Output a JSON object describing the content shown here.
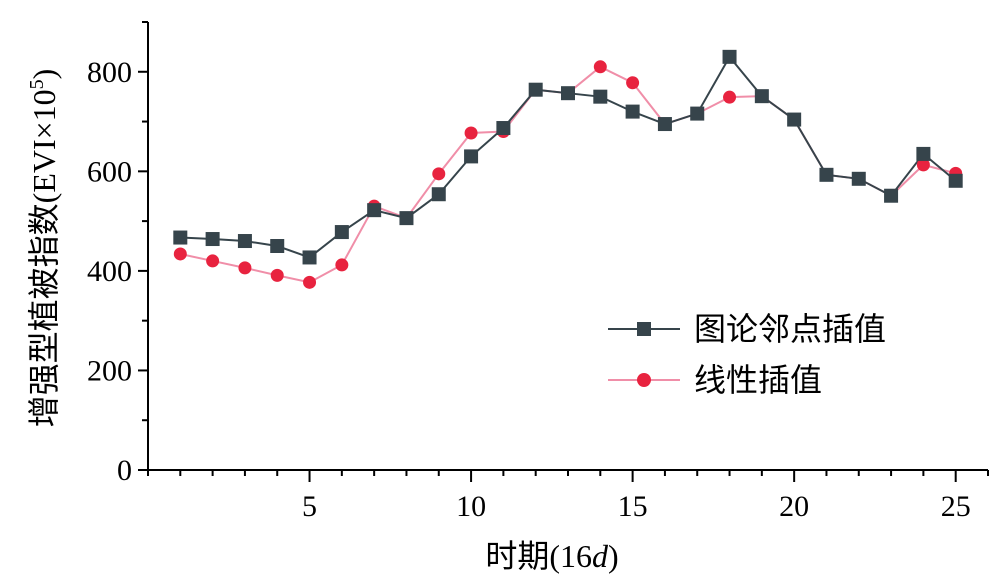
{
  "chart_data": {
    "type": "line",
    "xlabel": "时期(16",
    "xlabel_italic": "d",
    "xlabel_close": ")",
    "ylabel": "增强型植被指数(EVI×10",
    "ylabel_sup": "5",
    "ylabel_close": ")",
    "xlim": [
      0,
      26
    ],
    "ylim": [
      0,
      900
    ],
    "xticks": [
      5,
      10,
      15,
      20,
      25
    ],
    "yticks": [
      0,
      200,
      400,
      600,
      800
    ],
    "x": [
      1,
      2,
      3,
      4,
      5,
      6,
      7,
      8,
      9,
      10,
      11,
      12,
      13,
      14,
      15,
      16,
      17,
      18,
      19,
      20,
      21,
      22,
      23,
      24,
      25
    ],
    "series": [
      {
        "name": "图论邻点插值",
        "marker": "square",
        "color": "#36444b",
        "values": [
          467,
          464,
          460,
          450,
          427,
          478,
          522,
          506,
          554,
          630,
          687,
          764,
          757,
          750,
          720,
          695,
          716,
          830,
          751,
          704,
          593,
          585,
          551,
          635,
          581
        ]
      },
      {
        "name": "线性插值",
        "marker": "circle",
        "color": "#f08ea8",
        "marker_color": "#e8233f",
        "values": [
          434,
          420,
          406,
          391,
          377,
          412,
          530,
          506,
          595,
          677,
          680,
          764,
          757,
          810,
          778,
          695,
          716,
          749,
          751,
          704,
          593,
          585,
          551,
          613,
          596
        ]
      }
    ],
    "legend_position": "lower-right",
    "grid": false
  }
}
